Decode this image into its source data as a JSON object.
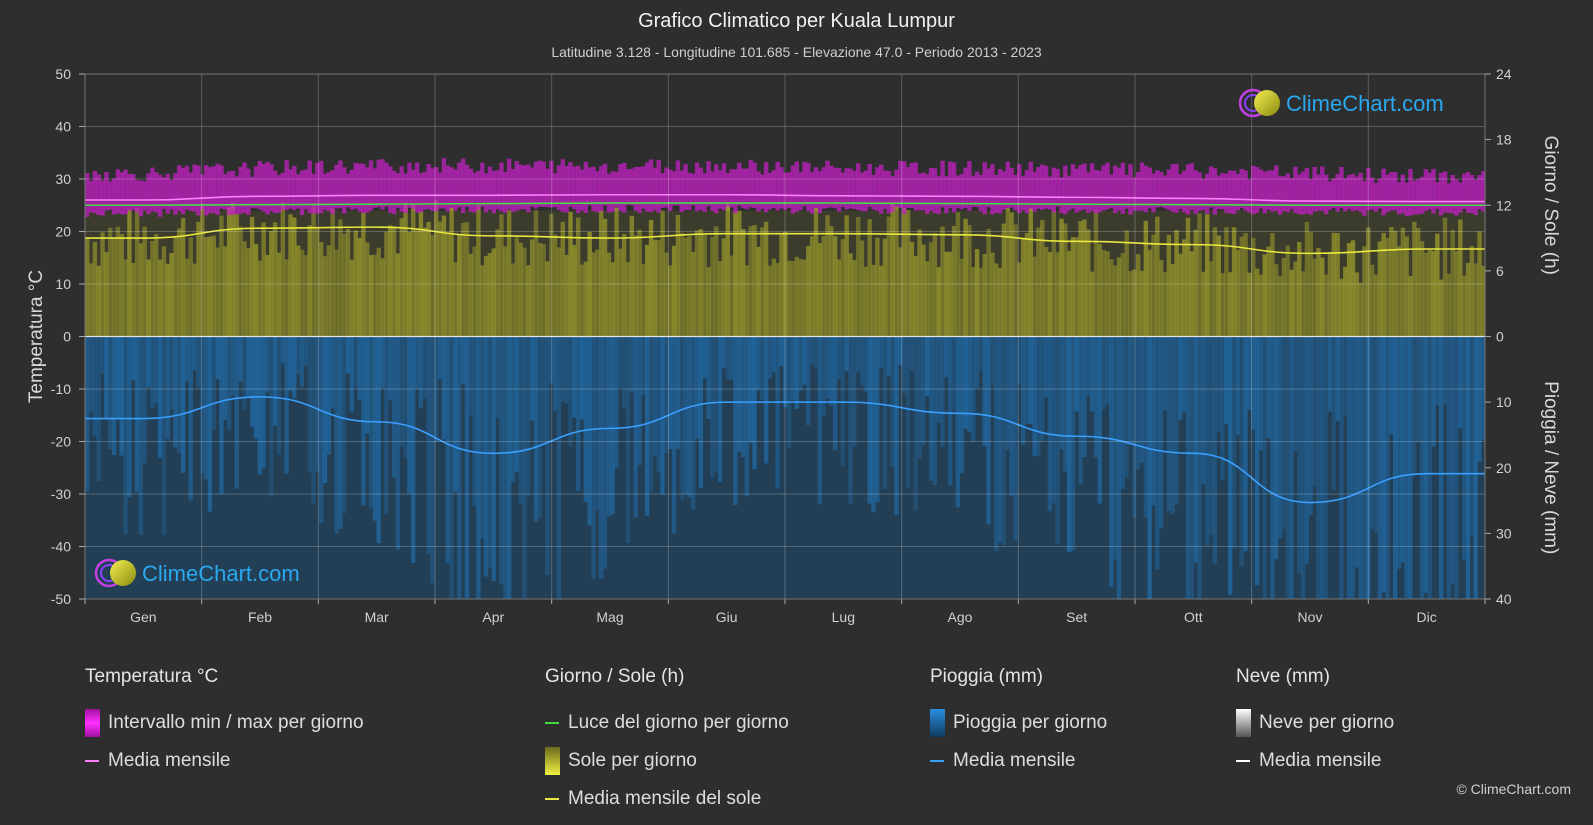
{
  "header": {
    "title": "Grafico Climatico per Kuala Lumpur",
    "subtitle": "Latitudine 3.128 - Longitudine 101.685 - Elevazione 47.0 - Periodo 2013 - 2023"
  },
  "watermark": {
    "text": "ClimeChart.com"
  },
  "copyright": "© ClimeChart.com",
  "colors": {
    "background": "#2e2e2e",
    "temp_band": "#c020c0",
    "temp_mean": "#ff80ff",
    "daylight": "#44dd44",
    "sun_fill": "#bcbc30",
    "sun_mean": "#e8e840",
    "rain_fill": "#1f6fa8",
    "rain_mean": "#3aa0ff",
    "snow_mean": "#ffffff",
    "brand": "#2aa8f0"
  },
  "legend": {
    "temperature": {
      "title": "Temperatura °C",
      "items": [
        {
          "label": "Intervallo min / max per giorno",
          "kind": "box",
          "color": "#d010d0"
        },
        {
          "label": "Media mensile",
          "kind": "line",
          "color": "#ff80ff"
        }
      ]
    },
    "sun": {
      "title": "Giorno / Sole (h)",
      "items": [
        {
          "label": "Luce del giorno per giorno",
          "kind": "line",
          "color": "#44dd44"
        },
        {
          "label": "Sole per giorno",
          "kind": "box",
          "color": "#d8d840"
        },
        {
          "label": "Media mensile del sole",
          "kind": "line",
          "color": "#e8e840"
        }
      ]
    },
    "rain": {
      "title": "Pioggia (mm)",
      "items": [
        {
          "label": "Pioggia per giorno",
          "kind": "box",
          "color": "#2288dd"
        },
        {
          "label": "Media mensile",
          "kind": "line",
          "color": "#3aa0ff"
        }
      ]
    },
    "snow": {
      "title": "Neve (mm)",
      "items": [
        {
          "label": "Neve per giorno",
          "kind": "box",
          "color": "#dddddd"
        },
        {
          "label": "Media mensile",
          "kind": "line",
          "color": "#ffffff"
        }
      ]
    }
  },
  "chart_data": {
    "type": "area",
    "title": "Grafico Climatico per Kuala Lumpur",
    "categories": [
      "Gen",
      "Feb",
      "Mar",
      "Apr",
      "Mag",
      "Giu",
      "Lug",
      "Ago",
      "Set",
      "Ott",
      "Nov",
      "Dic"
    ],
    "axes": {
      "left": {
        "label": "Temperatura °C",
        "min": -50,
        "max": 50,
        "ticks": [
          50,
          40,
          30,
          20,
          10,
          0,
          -10,
          -20,
          -30,
          -40,
          -50
        ]
      },
      "right_top": {
        "label": "Giorno / Sole (h)",
        "min": 0,
        "max": 24,
        "ticks": [
          24,
          18,
          12,
          6,
          0
        ]
      },
      "right_bottom": {
        "label": "Pioggia / Neve (mm)",
        "min": 0,
        "max": 40,
        "ticks": [
          10,
          20,
          30,
          40
        ]
      }
    },
    "grid": true,
    "series": [
      {
        "name": "Intervallo min / max per giorno",
        "axis": "left",
        "min": [
          23.5,
          23.8,
          24.0,
          24.2,
          24.3,
          24.2,
          24.0,
          24.0,
          24.0,
          23.9,
          23.8,
          23.6
        ],
        "max": [
          31.0,
          32.0,
          32.5,
          32.5,
          32.5,
          32.5,
          32.0,
          32.0,
          31.8,
          31.5,
          31.0,
          30.5
        ]
      },
      {
        "name": "Media mensile",
        "axis": "left",
        "values": [
          26.0,
          26.7,
          26.9,
          26.9,
          27.0,
          27.0,
          26.8,
          26.7,
          26.5,
          26.3,
          25.8,
          25.7
        ]
      },
      {
        "name": "Luce del giorno per giorno",
        "axis": "right_top",
        "values": [
          12.0,
          12.05,
          12.1,
          12.15,
          12.2,
          12.2,
          12.2,
          12.15,
          12.1,
          12.05,
          12.0,
          12.0
        ]
      },
      {
        "name": "Media mensile del sole",
        "axis": "right_top",
        "values": [
          9.0,
          9.9,
          10.0,
          9.2,
          9.0,
          9.4,
          9.4,
          9.3,
          8.7,
          8.4,
          7.6,
          8.0
        ]
      },
      {
        "name": "Media mensile",
        "axis": "right_bottom",
        "values": [
          12.5,
          9.2,
          13.0,
          17.8,
          14.0,
          10.0,
          10.0,
          11.7,
          15.2,
          17.8,
          25.3,
          20.9
        ]
      }
    ]
  }
}
